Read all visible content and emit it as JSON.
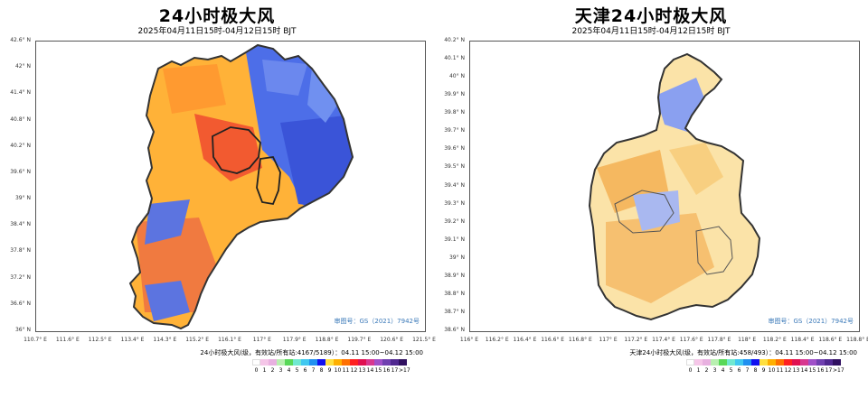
{
  "panels": [
    {
      "title": "24小时极大风",
      "subtitle": "2025年04月11日15时-04月12日15时 BJT",
      "y_labels": [
        "42.6° N",
        "42° N",
        "41.4° N",
        "40.8° N",
        "40.2° N",
        "39.6° N",
        "39° N",
        "38.4° N",
        "37.8° N",
        "37.2° N",
        "36.6° N",
        "36° N"
      ],
      "x_labels": [
        "110.7° E",
        "111.6° E",
        "112.5° E",
        "113.4° E",
        "114.3° E",
        "115.2° E",
        "116.1° E",
        "117° E",
        "117.9° E",
        "118.8° E",
        "119.7° E",
        "120.6° E",
        "121.5° E"
      ],
      "approval": "审图号：GS（2021）7942号",
      "legend_title": "24小时极大风(级，有效站/所有站:4167/5189）：04.11 15:00~04.12 15:00"
    },
    {
      "title": "天津24小时极大风",
      "subtitle": "2025年04月11日15时-04月12日15时 BJT",
      "y_labels": [
        "40.2° N",
        "40.1° N",
        "40° N",
        "39.9° N",
        "39.8° N",
        "39.7° N",
        "39.6° N",
        "39.5° N",
        "39.4° N",
        "39.3° N",
        "39.2° N",
        "39.1° N",
        "39° N",
        "38.9° N",
        "38.8° N",
        "38.7° N",
        "38.6° N"
      ],
      "x_labels": [
        "116° E",
        "116.2° E",
        "116.4° E",
        "116.6° E",
        "116.8° E",
        "117° E",
        "117.2° E",
        "117.4° E",
        "117.6° E",
        "117.8° E",
        "118° E",
        "118.2° E",
        "118.4° E",
        "118.6° E",
        "118.8° E"
      ],
      "approval": "审图号：GS（2021）7942号",
      "legend_title": "天津24小时极大风(级，有效站/所有站:458/493）：04.11 15:00~04.12 15:00"
    }
  ],
  "legend": {
    "labels": [
      "0",
      "1",
      "2",
      "3",
      "4",
      "5",
      "6",
      "7",
      "8",
      "9",
      "10",
      "11",
      "12",
      "13",
      "14",
      "15",
      "16",
      "17",
      ">17"
    ],
    "colors": [
      "#ffffff",
      "#f5c6e8",
      "#e8b0e0",
      "#b8f0b0",
      "#58d858",
      "#70e8d0",
      "#40c8f0",
      "#2090f0",
      "#1010f0",
      "#ffe040",
      "#ffb000",
      "#ff7000",
      "#ff2020",
      "#e01050",
      "#d83890",
      "#a050c8",
      "#7040b0",
      "#502890",
      "#301060"
    ]
  }
}
